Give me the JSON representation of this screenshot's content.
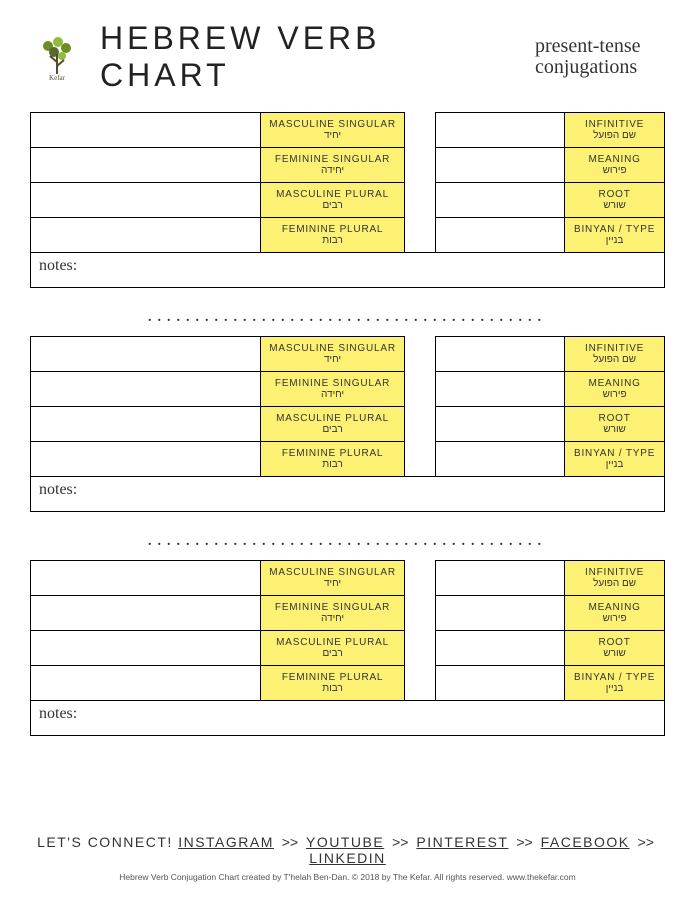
{
  "header": {
    "title": "HEBREW VERB CHART",
    "subtitle_line1": "present-tense",
    "subtitle_line2": "conjugations",
    "logo_name": "The Kefar"
  },
  "colors": {
    "label_bg": "#fdf173",
    "border": "#000000",
    "page_bg": "#ffffff",
    "logo_leaf": "#6b8e23",
    "logo_accent": "#8fbc3f"
  },
  "labels": {
    "notes": "notes:",
    "conjugation_rows": [
      {
        "en": "MASCULINE SINGULAR",
        "he": "יחיד"
      },
      {
        "en": "FEMININE SINGULAR",
        "he": "יחידה"
      },
      {
        "en": "MASCULINE PLURAL",
        "he": "רבים"
      },
      {
        "en": "FEMININE PLURAL",
        "he": "רבות"
      }
    ],
    "info_rows": [
      {
        "en": "INFINITIVE",
        "he": "שם הפועל"
      },
      {
        "en": "MEANING",
        "he": "פירוש"
      },
      {
        "en": "ROOT",
        "he": "שורש"
      },
      {
        "en": "BINYAN / TYPE",
        "he": "בניין"
      }
    ]
  },
  "separator_dots": "..........................................",
  "footer": {
    "lead": "LET'S CONNECT!",
    "links": [
      "INSTAGRAM",
      "YOUTUBE",
      "PINTEREST",
      "FACEBOOK",
      "LINKEDIN"
    ],
    "link_sep": ">>",
    "copyright": "Hebrew Verb Conjugation Chart created by T'helah Ben-Dan. © 2018 by The Kefar. All rights reserved. www.thekefar.com"
  },
  "block_count": 3
}
